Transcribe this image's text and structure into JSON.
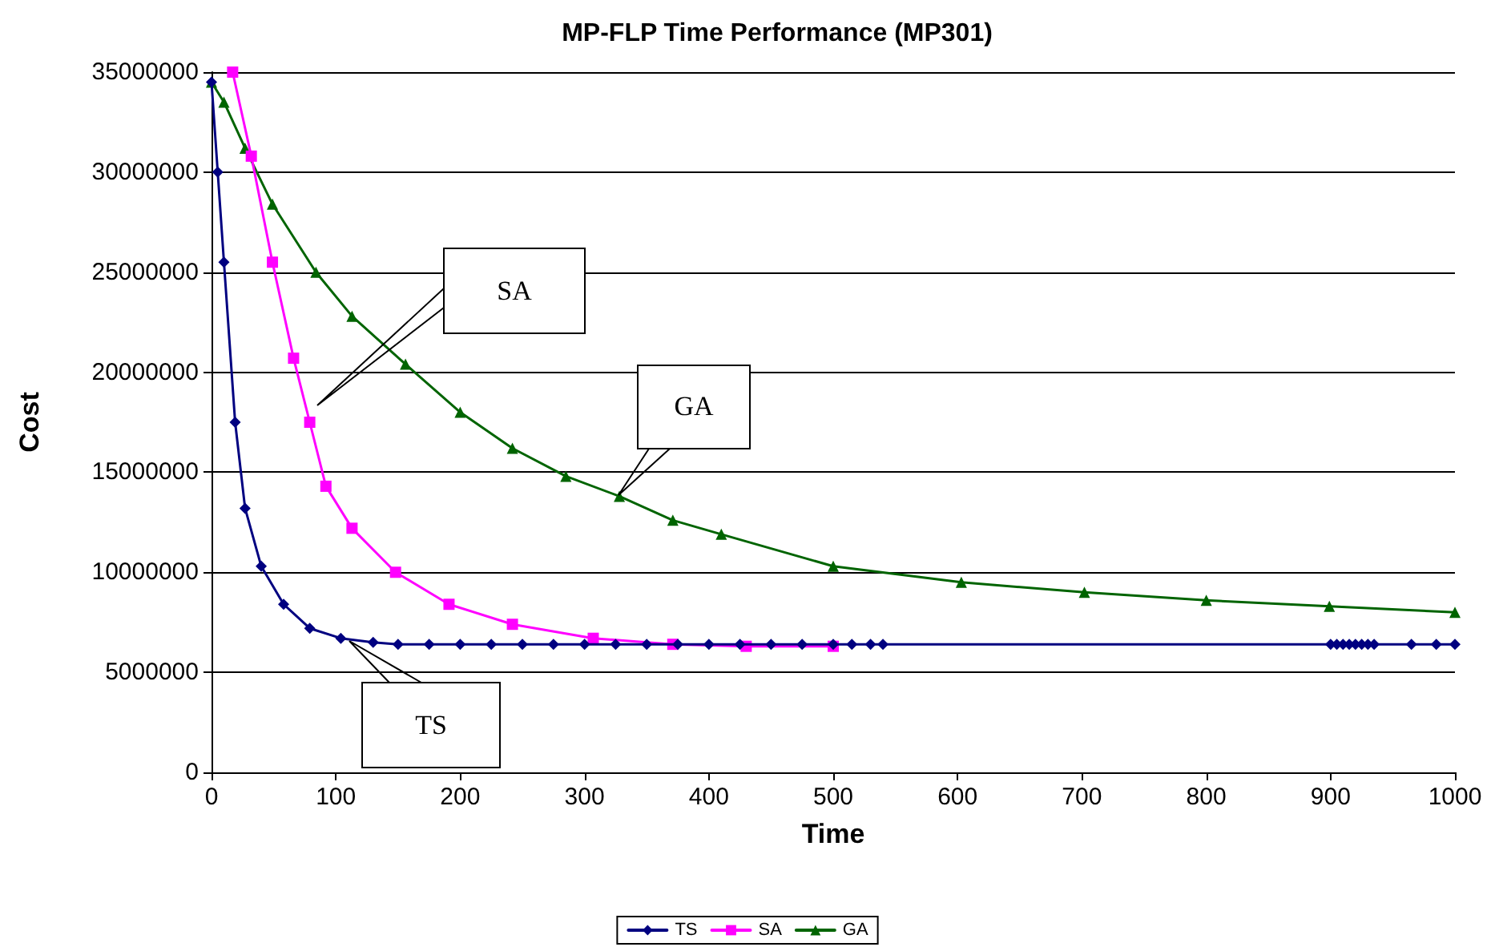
{
  "chart_data": {
    "type": "line",
    "title": "MP-FLP Time Performance (MP301)",
    "xlabel": "Time",
    "ylabel": "Cost",
    "xlim": [
      0,
      1000
    ],
    "xticks": [
      0,
      100,
      200,
      300,
      400,
      500,
      600,
      700,
      800,
      900,
      1000
    ],
    "ylim": [
      0,
      35000000
    ],
    "yticks": [
      0,
      5000000,
      10000000,
      15000000,
      20000000,
      25000000,
      30000000,
      35000000
    ],
    "grid": "y",
    "legend": "bottom",
    "line_style": "solid",
    "series": [
      {
        "name": "TS",
        "color": "#000080",
        "marker": "diamond",
        "x": [
          0,
          5,
          10,
          19,
          27,
          40,
          58,
          79,
          104,
          130,
          150,
          175,
          200,
          225,
          250,
          275,
          300,
          325,
          350,
          375,
          400,
          425,
          450,
          475,
          500,
          515,
          530,
          540,
          900,
          905,
          910,
          915,
          920,
          925,
          930,
          935,
          965,
          985,
          1000
        ],
        "values": [
          34500000,
          30000000,
          25500000,
          17500000,
          13200000,
          10300000,
          8400000,
          7200000,
          6700000,
          6500000,
          6400000,
          6400000,
          6400000,
          6400000,
          6400000,
          6400000,
          6400000,
          6400000,
          6400000,
          6400000,
          6400000,
          6400000,
          6400000,
          6400000,
          6400000,
          6400000,
          6400000,
          6400000,
          6400000,
          6400000,
          6400000,
          6400000,
          6400000,
          6400000,
          6400000,
          6400000,
          6400000,
          6400000,
          6400000
        ]
      },
      {
        "name": "SA",
        "color": "#ff00ff",
        "marker": "square",
        "x": [
          17,
          32,
          49,
          66,
          79,
          92,
          113,
          148,
          191,
          242,
          307,
          371,
          430,
          500
        ],
        "values": [
          35000000,
          30800000,
          25500000,
          20700000,
          17500000,
          14300000,
          12200000,
          10000000,
          8400000,
          7400000,
          6700000,
          6400000,
          6300000,
          6300000
        ]
      },
      {
        "name": "GA",
        "color": "#006400",
        "marker": "triangle",
        "x": [
          0,
          10,
          27,
          49,
          84,
          113,
          156,
          200,
          242,
          285,
          328,
          371,
          410,
          500,
          603,
          702,
          800,
          899,
          1000
        ],
        "values": [
          34500000,
          33500000,
          31200000,
          28400000,
          25000000,
          22800000,
          20400000,
          18000000,
          16200000,
          14800000,
          13800000,
          12600000,
          11900000,
          10300000,
          9500000,
          9000000,
          8600000,
          8300000,
          8000000
        ]
      }
    ],
    "annotations": [
      "SA",
      "GA",
      "TS"
    ]
  }
}
